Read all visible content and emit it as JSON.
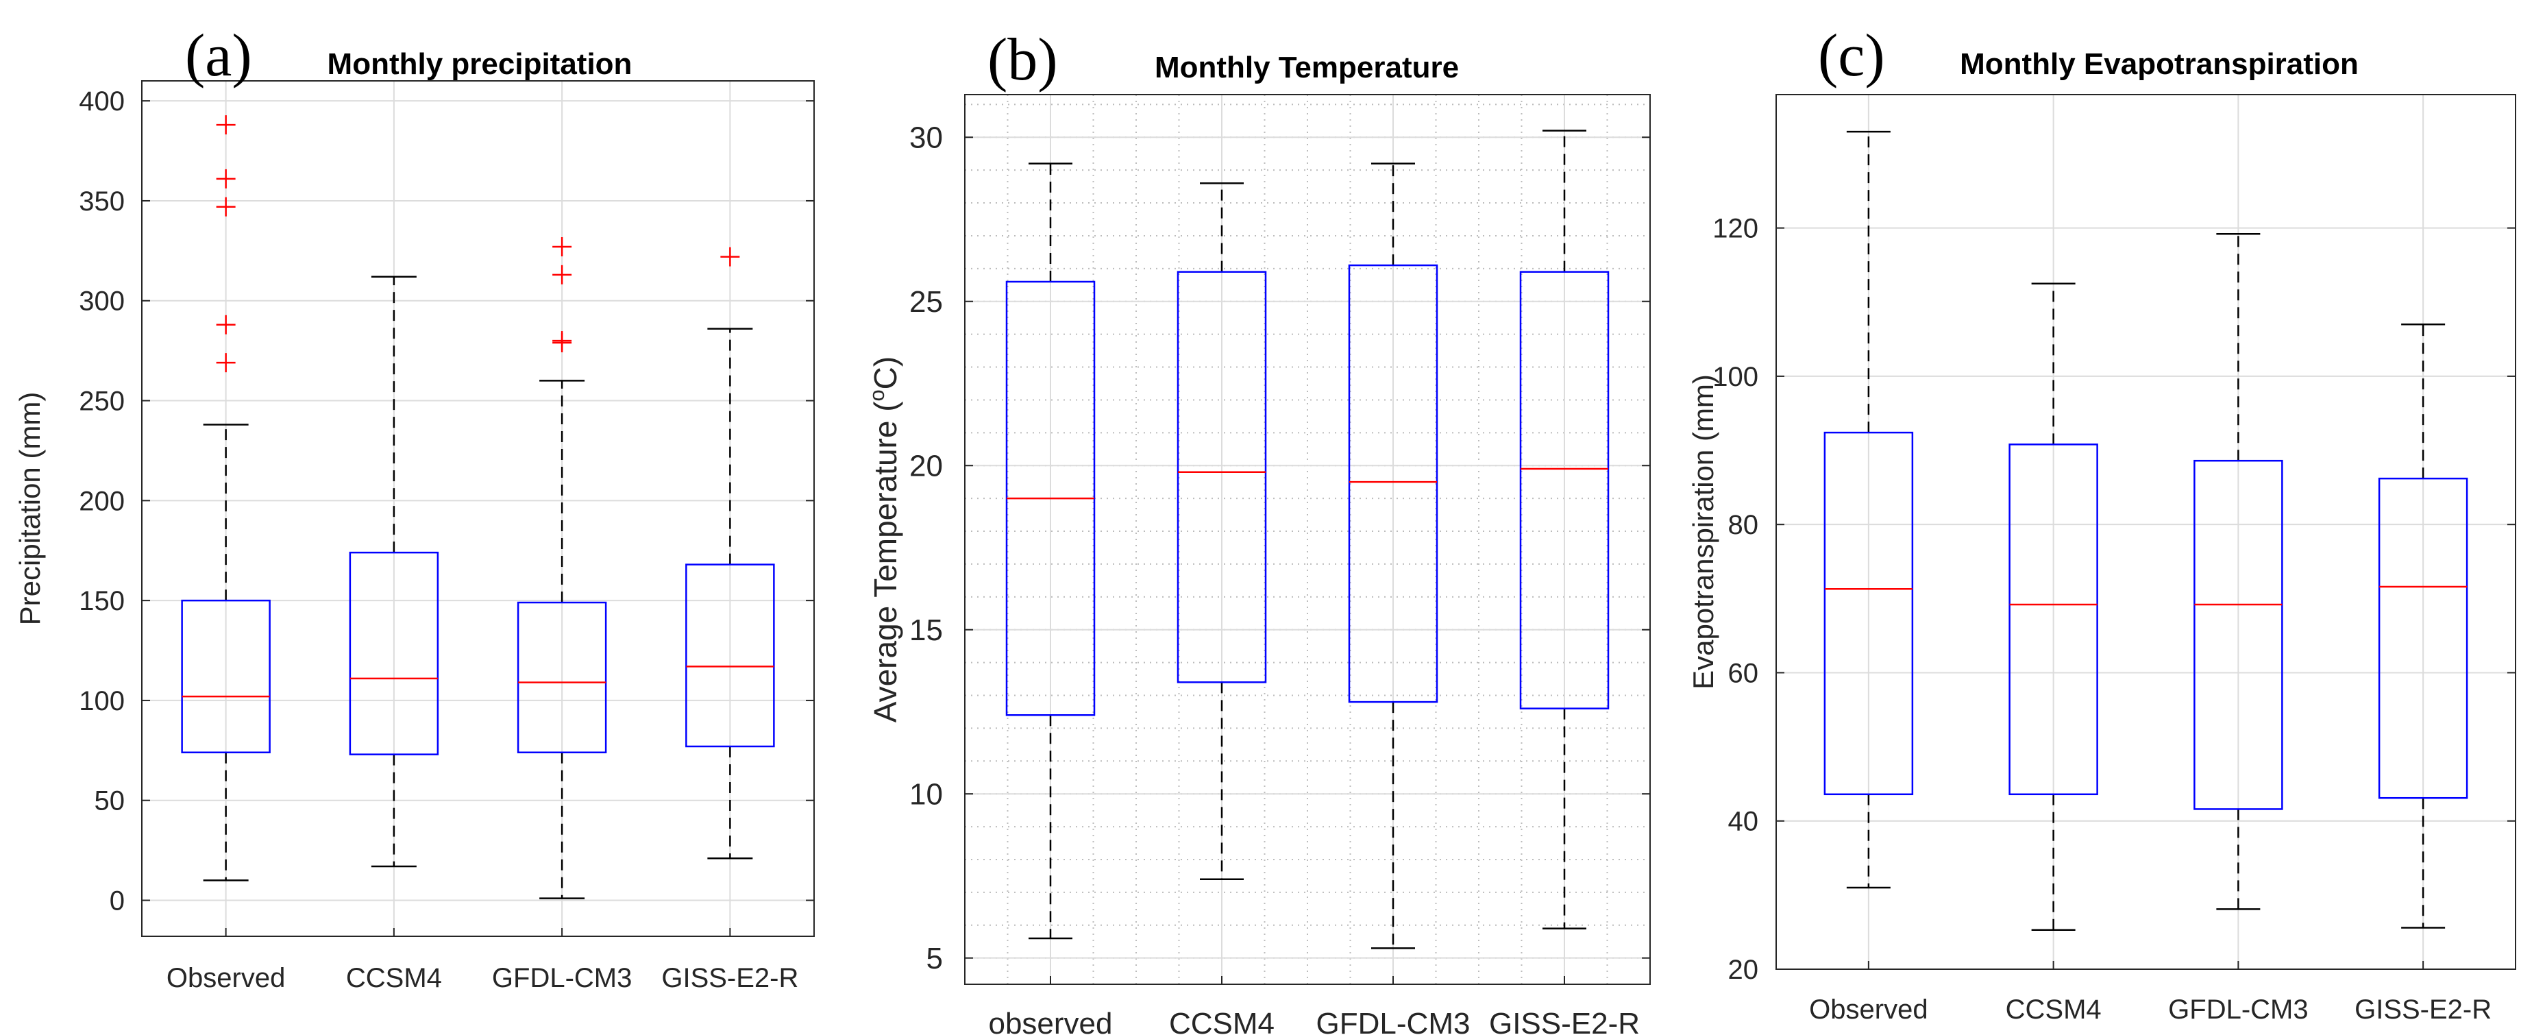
{
  "figure": {
    "colors": {
      "box": "#0000ff",
      "median": "#ff0000",
      "whisker": "#000000",
      "outlier": "#ff0000",
      "grid": "#dcdcdc",
      "minor_grid": "#bcbcbc"
    }
  },
  "chart_data": [
    {
      "type": "box",
      "panel_label": "(a)",
      "title": "Monthly precipitation",
      "ylabel": "Precipitation (mm)",
      "ylim": [
        -18,
        410
      ],
      "yticks": [
        0,
        50,
        100,
        150,
        200,
        250,
        300,
        350,
        400
      ],
      "minor_grid": false,
      "categories": [
        "Observed",
        "CCSM4",
        "GFDL-CM3",
        "GISS-E2-R"
      ],
      "series": [
        {
          "name": "Observed",
          "whisker_low": 10,
          "q1": 74,
          "median": 102,
          "q3": 150,
          "whisker_high": 238,
          "outliers": [
            269,
            288,
            347,
            361,
            388
          ]
        },
        {
          "name": "CCSM4",
          "whisker_low": 17,
          "q1": 73,
          "median": 111,
          "q3": 174,
          "whisker_high": 312,
          "outliers": []
        },
        {
          "name": "GFDL-CM3",
          "whisker_low": 1,
          "q1": 74,
          "median": 109,
          "q3": 149,
          "whisker_high": 260,
          "outliers": [
            279,
            280,
            313,
            327
          ]
        },
        {
          "name": "GISS-E2-R",
          "whisker_low": 21,
          "q1": 77,
          "median": 117,
          "q3": 168,
          "whisker_high": 286,
          "outliers": [
            322
          ]
        }
      ]
    },
    {
      "type": "box",
      "panel_label": "(b)",
      "title": "Monthly Temperature",
      "ylabel": "Average Temperature (",
      "ylabel_sup": "o",
      "ylabel_unit": "C)",
      "ylim": [
        4.2,
        31.3
      ],
      "yticks": [
        5,
        10,
        15,
        20,
        25,
        30
      ],
      "minor_grid": true,
      "categories": [
        "observed",
        "CCSM4",
        "GFDL-CM3",
        "GISS-E2-R"
      ],
      "series": [
        {
          "name": "observed",
          "whisker_low": 5.6,
          "q1": 12.4,
          "median": 19.0,
          "q3": 25.6,
          "whisker_high": 29.2,
          "outliers": []
        },
        {
          "name": "CCSM4",
          "whisker_low": 7.4,
          "q1": 13.4,
          "median": 19.8,
          "q3": 25.9,
          "whisker_high": 28.6,
          "outliers": []
        },
        {
          "name": "GFDL-CM3",
          "whisker_low": 5.3,
          "q1": 12.8,
          "median": 19.5,
          "q3": 26.1,
          "whisker_high": 29.2,
          "outliers": []
        },
        {
          "name": "GISS-E2-R",
          "whisker_low": 5.9,
          "q1": 12.6,
          "median": 19.9,
          "q3": 25.9,
          "whisker_high": 30.2,
          "outliers": []
        }
      ]
    },
    {
      "type": "box",
      "panel_label": "(c)",
      "title": "Monthly Evapotranspiration",
      "ylabel": "Evapotranspiration (mm)",
      "ylim": [
        20,
        138
      ],
      "yticks": [
        20,
        40,
        60,
        80,
        100,
        120
      ],
      "minor_grid": false,
      "categories": [
        "Observed",
        "CCSM4",
        "GFDL-CM3",
        "GISS-E2-R"
      ],
      "series": [
        {
          "name": "Observed",
          "whisker_low": 31,
          "q1": 43.6,
          "median": 71.3,
          "q3": 92.4,
          "whisker_high": 133,
          "outliers": []
        },
        {
          "name": "CCSM4",
          "whisker_low": 25.3,
          "q1": 43.6,
          "median": 69.2,
          "q3": 90.8,
          "whisker_high": 112.5,
          "outliers": []
        },
        {
          "name": "GFDL-CM3",
          "whisker_low": 28.1,
          "q1": 41.6,
          "median": 69.2,
          "q3": 88.6,
          "whisker_high": 119.2,
          "outliers": []
        },
        {
          "name": "GISS-E2-R",
          "whisker_low": 25.6,
          "q1": 43.1,
          "median": 71.6,
          "q3": 86.2,
          "whisker_high": 107,
          "outliers": []
        }
      ]
    }
  ]
}
